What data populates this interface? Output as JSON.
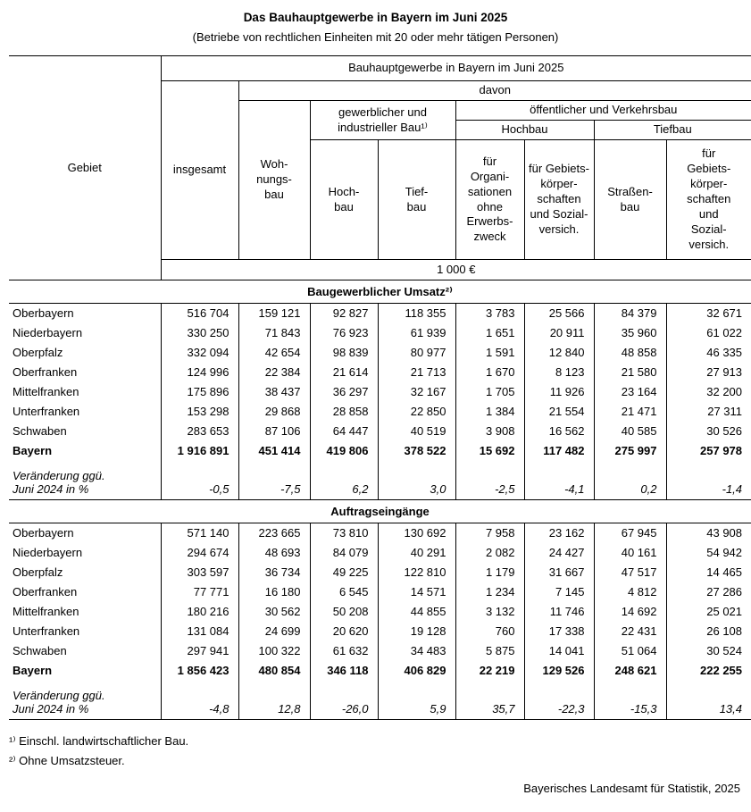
{
  "page": {
    "title": "Das Bauhauptgewerbe in Bayern im Juni 2025",
    "subtitle": "(Betriebe von rechtlichen Einheiten mit 20 oder mehr tätigen Personen)",
    "footnote1": "¹⁾ Einschl. landwirtschaftlicher Bau.",
    "footnote2": "²⁾ Ohne Umsatzsteuer.",
    "footer": "Bayerisches Landesamt für Statistik, 2025"
  },
  "table": {
    "header": {
      "gebiet": "Gebiet",
      "top": "Bauhauptgewerbe in Bayern im Juni 2025",
      "insgesamt": "insgesamt",
      "davon": "davon",
      "wohnungsbau": "Woh-\nnungs-\nbau",
      "gewerblich": "gewerblicher und\nindustrieller Bau¹⁾",
      "oeffentlich": "öffentlicher und Verkehrsbau",
      "hochbau_group": "Hochbau",
      "tiefbau_group": "Tiefbau",
      "col_hochbau": "Hoch-\nbau",
      "col_tiefbau": "Tief-\nbau",
      "col_org": "für\nOrgani-\nsationen\nohne\nErwerbs-\nzweck",
      "col_gebiets_hoch": "für Gebiets-\nkörper-\nschaften\nund Sozial-\nversich.",
      "col_strassen": "Straßen-\nbau",
      "col_gebiets_tief": "für\nGebiets-\nkörper-\nschaften\nund\nSozial-\nversich.",
      "unit": "1 000 €"
    },
    "sections": [
      {
        "title": "Baugewerblicher Umsatz²⁾",
        "rows": [
          {
            "label": "Oberbayern",
            "values": [
              "516 704",
              "159 121",
              "92 827",
              "118 355",
              "3 783",
              "25 566",
              "84 379",
              "32 671"
            ]
          },
          {
            "label": "Niederbayern",
            "values": [
              "330 250",
              "71 843",
              "76 923",
              "61 939",
              "1 651",
              "20 911",
              "35 960",
              "61 022"
            ]
          },
          {
            "label": "Oberpfalz",
            "values": [
              "332 094",
              "42 654",
              "98 839",
              "80 977",
              "1 591",
              "12 840",
              "48 858",
              "46 335"
            ]
          },
          {
            "label": "Oberfranken",
            "values": [
              "124 996",
              "22 384",
              "21 614",
              "21 713",
              "1 670",
              "8 123",
              "21 580",
              "27 913"
            ]
          },
          {
            "label": "Mittelfranken",
            "values": [
              "175 896",
              "38 437",
              "36 297",
              "32 167",
              "1 705",
              "11 926",
              "23 164",
              "32 200"
            ]
          },
          {
            "label": "Unterfranken",
            "values": [
              "153 298",
              "29 868",
              "28 858",
              "22 850",
              "1 384",
              "21 554",
              "21 471",
              "27 311"
            ]
          },
          {
            "label": "Schwaben",
            "values": [
              "283 653",
              "87 106",
              "64 447",
              "40 519",
              "3 908",
              "16 562",
              "40 585",
              "30 526"
            ]
          },
          {
            "label": "Bayern",
            "bold": true,
            "values": [
              "1 916 891",
              "451 414",
              "419 806",
              "378 522",
              "15 692",
              "117 482",
              "275 997",
              "257 978"
            ]
          },
          {
            "label": "Veränderung ggü.\nJuni 2024 in %",
            "italic": true,
            "values": [
              "-0,5",
              "-7,5",
              "6,2",
              "3,0",
              "-2,5",
              "-4,1",
              "0,2",
              "-1,4"
            ]
          }
        ]
      },
      {
        "title": "Auftragseingänge",
        "rows": [
          {
            "label": "Oberbayern",
            "values": [
              "571 140",
              "223 665",
              "73 810",
              "130 692",
              "7 958",
              "23 162",
              "67 945",
              "43 908"
            ]
          },
          {
            "label": "Niederbayern",
            "values": [
              "294 674",
              "48 693",
              "84 079",
              "40 291",
              "2 082",
              "24 427",
              "40 161",
              "54 942"
            ]
          },
          {
            "label": "Oberpfalz",
            "values": [
              "303 597",
              "36 734",
              "49 225",
              "122 810",
              "1 179",
              "31 667",
              "47 517",
              "14 465"
            ]
          },
          {
            "label": "Oberfranken",
            "values": [
              "77 771",
              "16 180",
              "6 545",
              "14 571",
              "1 234",
              "7 145",
              "4 812",
              "27 286"
            ]
          },
          {
            "label": "Mittelfranken",
            "values": [
              "180 216",
              "30 562",
              "50 208",
              "44 855",
              "3 132",
              "11 746",
              "14 692",
              "25 021"
            ]
          },
          {
            "label": "Unterfranken",
            "values": [
              "131 084",
              "24 699",
              "20 620",
              "19 128",
              "760",
              "17 338",
              "22 431",
              "26 108"
            ]
          },
          {
            "label": "Schwaben",
            "values": [
              "297 941",
              "100 322",
              "61 632",
              "34 483",
              "5 875",
              "14 041",
              "51 064",
              "30 524"
            ]
          },
          {
            "label": "Bayern",
            "bold": true,
            "values": [
              "1 856 423",
              "480 854",
              "346 118",
              "406 829",
              "22 219",
              "129 526",
              "248 621",
              "222 255"
            ]
          },
          {
            "label": "Veränderung ggü.\nJuni 2024 in %",
            "italic": true,
            "values": [
              "-4,8",
              "12,8",
              "-26,0",
              "5,9",
              "35,7",
              "-22,3",
              "-15,3",
              "13,4"
            ]
          }
        ]
      }
    ]
  }
}
